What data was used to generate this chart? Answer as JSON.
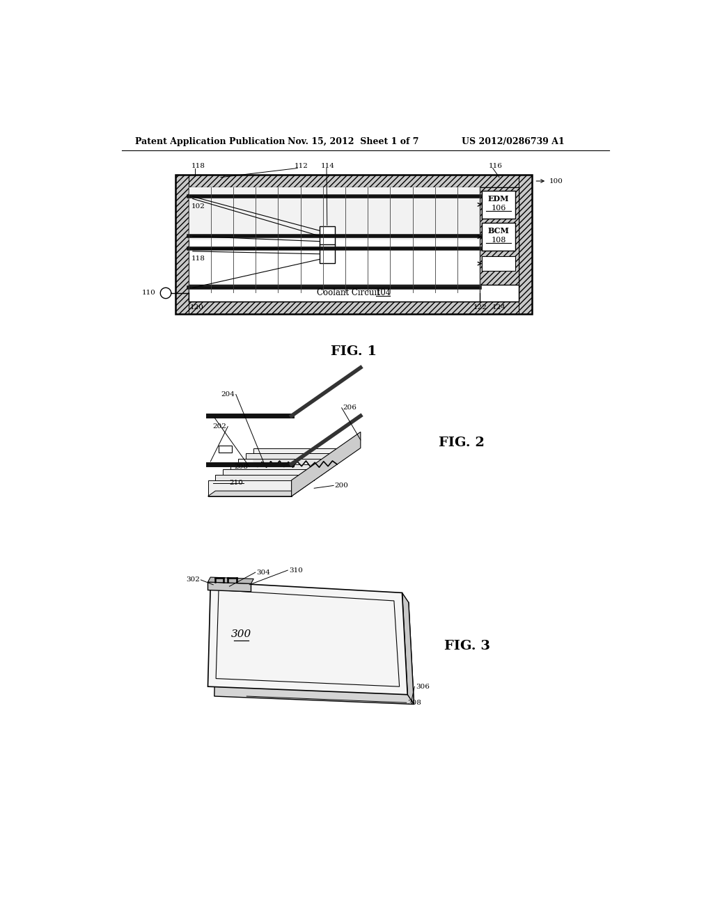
{
  "header_left": "Patent Application Publication",
  "header_mid": "Nov. 15, 2012  Sheet 1 of 7",
  "header_right": "US 2012/0286739 A1",
  "fig1_label": "FIG. 1",
  "fig2_label": "FIG. 2",
  "fig3_label": "FIG. 3",
  "bg_color": "#ffffff",
  "line_color": "#000000"
}
